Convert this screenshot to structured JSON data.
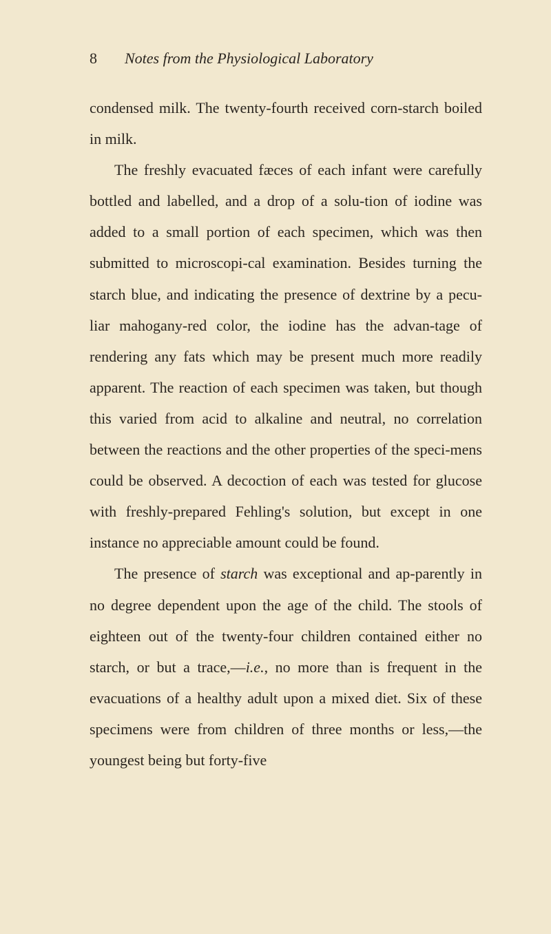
{
  "page": {
    "number": "8",
    "running_title": "Notes from the Physiological Laboratory",
    "background_color": "#f2e8cf",
    "text_color": "#2a2520",
    "font_size": 22,
    "line_height": 2.05
  },
  "paragraphs": {
    "p1_part1": "condensed milk. The twenty-fourth received corn-starch boiled in milk.",
    "p2_part1": "The freshly evacuated fæces of each infant were carefully bottled and labelled, and a drop of a solu-tion of iodine was added to a small portion of each specimen, which was then submitted to microscopi-cal examination. Besides turning the starch blue, and indicating the presence of dextrine by a pecu-liar mahogany-red color, the iodine has the advan-tage of rendering any fats which may be present much more readily apparent. The reaction of each specimen was taken, but though this varied from acid to alkaline and neutral, no correlation between the reactions and the other properties of the speci-mens could be observed. A decoction of each was tested for glucose with freshly-prepared Fehling's solution, but except in one instance no appreciable amount could be found.",
    "p3_prefix": "The presence of ",
    "p3_italic1": "starch",
    "p3_mid1": " was exceptional and ap-parently in no degree dependent upon the age of the child. The stools of eighteen out of the twenty-four children contained either no starch, or but a trace,—",
    "p3_italic2": "i.e.",
    "p3_mid2": ", no more than is frequent in the evacuations of a healthy adult upon a mixed diet. Six of these specimens were from children of three months or less,—the youngest being but forty-five"
  }
}
